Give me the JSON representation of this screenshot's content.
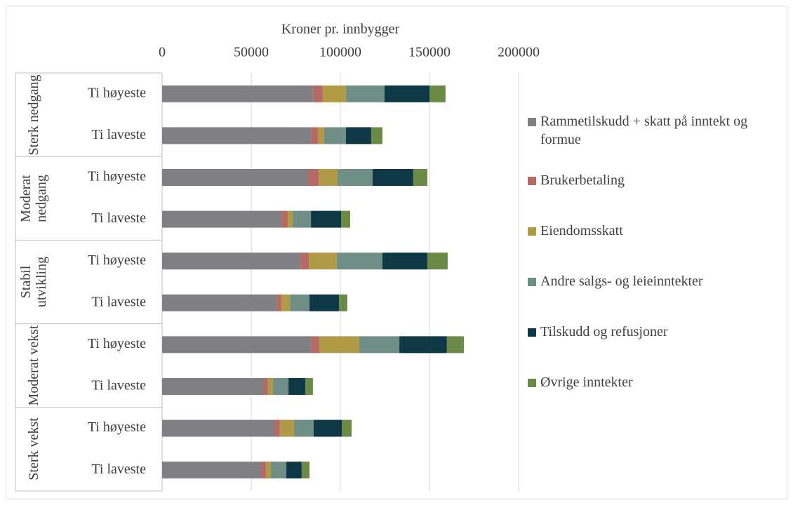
{
  "chart_data": {
    "type": "bar",
    "orientation": "horizontal",
    "stacked": true,
    "xlabel": "Kroner pr. innbygger",
    "groups": [
      "Sterk nedgang",
      "Moderat nedgang",
      "Stabil utvikling",
      "Moderat vekst",
      "Sterk vekst"
    ],
    "categories": [
      "Ti høyeste",
      "Ti laveste",
      "Ti høyeste",
      "Ti laveste",
      "Ti høyeste",
      "Ti laveste",
      "Ti høyeste",
      "Ti laveste",
      "Ti høyeste",
      "Ti laveste"
    ],
    "series": [
      {
        "name": "Rammetilskudd + skatt på inntekt og formue",
        "color": "#7f7f84",
        "values": [
          84600,
          83500,
          81900,
          66900,
          77600,
          64200,
          83500,
          56700,
          63000,
          55500
        ]
      },
      {
        "name": "Brukerbetaling",
        "color": "#b56a66",
        "values": [
          5500,
          3900,
          5900,
          3600,
          4700,
          2700,
          4700,
          2700,
          3100,
          2800
        ]
      },
      {
        "name": "Eiendomsskatt",
        "color": "#b19a45",
        "values": [
          13000,
          3500,
          10600,
          2700,
          15700,
          4800,
          22400,
          2800,
          7900,
          2700
        ]
      },
      {
        "name": "Andre salgs- og leieinntekter",
        "color": "#6f8f86",
        "values": [
          21700,
          12200,
          19700,
          10300,
          25600,
          11000,
          22500,
          8700,
          11000,
          8700
        ]
      },
      {
        "name": "Tilskudd og refusjoner",
        "color": "#0f3846",
        "values": [
          25200,
          14200,
          22800,
          16900,
          25200,
          16500,
          26700,
          9400,
          15800,
          8600
        ]
      },
      {
        "name": "Øvrige inntekter",
        "color": "#6b8a45",
        "values": [
          9000,
          6300,
          7900,
          5100,
          11400,
          4700,
          9500,
          4300,
          5500,
          4400
        ]
      }
    ],
    "xlim": [
      0,
      200000
    ],
    "xticks": [
      0,
      50000,
      100000,
      150000,
      200000
    ],
    "grid": true,
    "legend": "right"
  }
}
